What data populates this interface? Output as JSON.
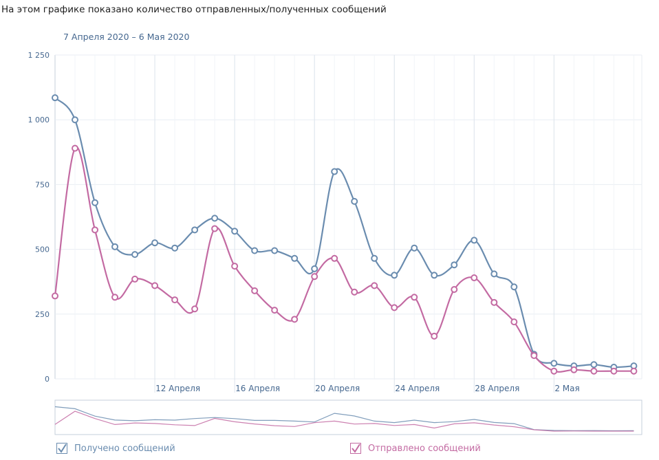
{
  "caption": "На этом графике показано количество отправленных/полученных сообщений",
  "date_range": "7 Апреля 2020 – 6 Мая 2020",
  "colors": {
    "received": "#6a8caf",
    "sent": "#c36aa2",
    "text": "#45678f",
    "grid": "#e8edf3"
  },
  "legend": [
    {
      "label": "Получено сообщений",
      "color": "#6a8caf",
      "checked": true
    },
    {
      "label": "Отправлено сообщений",
      "color": "#c36aa2",
      "checked": true
    }
  ],
  "chart_data": {
    "type": "line",
    "title": "",
    "y_ticks": [
      "0",
      "250",
      "500",
      "750",
      "1 000",
      "1 250"
    ],
    "y_tick_values": [
      0,
      250,
      500,
      750,
      1000,
      1250
    ],
    "ylim": [
      0,
      1250
    ],
    "x_ticks": [
      {
        "label": "12 Апреля",
        "x": 12
      },
      {
        "label": "16 Апреля",
        "x": 16
      },
      {
        "label": "20 Апреля",
        "x": 20
      },
      {
        "label": "24 Апреля",
        "x": 24
      },
      {
        "label": "28 Апреля",
        "x": 28
      },
      {
        "label": "2 Мая",
        "x": 32
      }
    ],
    "x": [
      7,
      8,
      9,
      10,
      11,
      12,
      13,
      14,
      15,
      16,
      17,
      18,
      19,
      20,
      21,
      22,
      23,
      24,
      25,
      26,
      27,
      28,
      29,
      30,
      31,
      32,
      33,
      34,
      35,
      36
    ],
    "series": [
      {
        "name": "Получено сообщений",
        "color": "#6a8caf",
        "values": [
          1085,
          1000,
          680,
          510,
          480,
          525,
          505,
          575,
          620,
          570,
          495,
          495,
          465,
          425,
          800,
          685,
          465,
          400,
          505,
          400,
          440,
          535,
          405,
          355,
          95,
          60,
          50,
          55,
          45,
          50
        ]
      },
      {
        "name": "Отправлено сообщений",
        "color": "#c36aa2",
        "values": [
          320,
          890,
          575,
          315,
          385,
          360,
          305,
          270,
          580,
          435,
          340,
          265,
          230,
          395,
          465,
          335,
          360,
          275,
          315,
          165,
          345,
          390,
          295,
          220,
          90,
          30,
          35,
          30,
          30,
          30
        ]
      }
    ]
  }
}
